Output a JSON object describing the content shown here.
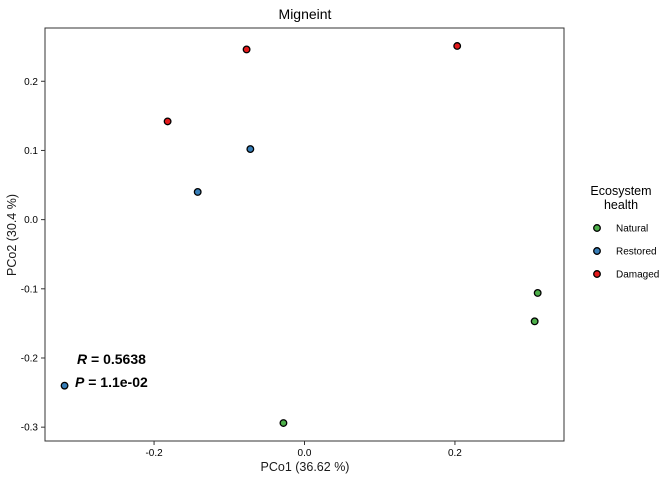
{
  "chart_data": {
    "type": "scatter",
    "title": "Migneint",
    "xlabel": "PCo1 (36.62 %)",
    "ylabel": "PCo2 (30.4 %)",
    "xlim": [
      -0.345,
      0.345
    ],
    "ylim": [
      -0.32,
      0.277
    ],
    "xticks": [
      -0.2,
      0.0,
      0.2
    ],
    "xtick_labels": [
      "-0.2",
      "0.0",
      "0.2"
    ],
    "yticks": [
      -0.3,
      -0.2,
      -0.1,
      0.0,
      0.1,
      0.2
    ],
    "ytick_labels": [
      "-0.3",
      "-0.2",
      "-0.1",
      "0.0",
      "0.1",
      "0.2"
    ],
    "grid": false,
    "legend": {
      "title_lines": [
        "Ecosystem",
        "health"
      ],
      "placement": "right",
      "entries": [
        "Natural",
        "Restored",
        "Damaged"
      ]
    },
    "series": [
      {
        "name": "Natural",
        "color": "#4daf4a",
        "points": [
          [
            0.31,
            -0.106
          ],
          [
            0.306,
            -0.147
          ],
          [
            -0.028,
            -0.294
          ]
        ]
      },
      {
        "name": "Restored",
        "color": "#377eb8",
        "points": [
          [
            -0.072,
            0.102
          ],
          [
            -0.142,
            0.04
          ],
          [
            -0.319,
            -0.24
          ]
        ]
      },
      {
        "name": "Damaged",
        "color": "#e41a1c",
        "points": [
          [
            -0.077,
            0.246
          ],
          [
            0.203,
            0.251
          ],
          [
            -0.182,
            0.142
          ]
        ]
      }
    ],
    "annotations": {
      "r_symbol": "R",
      "r_text": " = 0.5638",
      "p_symbol": "P",
      "p_text": " = 1.1e-02"
    }
  }
}
